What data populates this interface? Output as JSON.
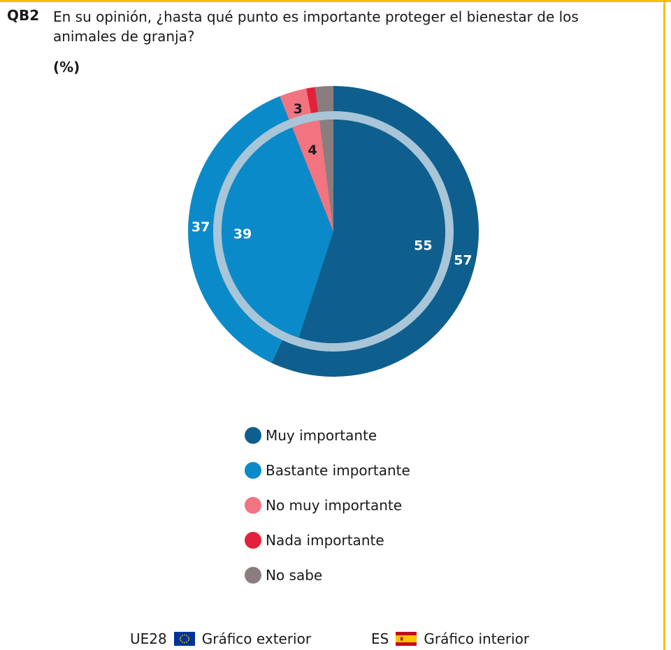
{
  "header": {
    "qid": "QB2",
    "question": "En su opinión, ¿hasta qué punto es importante proteger el bienestar de los animales de granja?",
    "unit": "(%)"
  },
  "chart_data": {
    "type": "pie",
    "categories": [
      "Muy importante",
      "Bastante importante",
      "No muy importante",
      "Nada importante",
      "No sabe"
    ],
    "colors": [
      "#0e5f8e",
      "#0b8ac9",
      "#f27480",
      "#e3213b",
      "#8a7d7f"
    ],
    "series": [
      {
        "name": "UE28",
        "ring": "exterior",
        "values": [
          57,
          37,
          3,
          1,
          2
        ],
        "labels": [
          "57",
          "37",
          "3",
          "",
          ""
        ]
      },
      {
        "name": "ES",
        "ring": "interior",
        "values": [
          55,
          39,
          4,
          0,
          2
        ],
        "labels": [
          "55",
          "39",
          "4",
          "",
          ""
        ]
      }
    ]
  },
  "legend": [
    {
      "label": "Muy importante",
      "color": "#0e5f8e"
    },
    {
      "label": "Bastante importante",
      "color": "#0b8ac9"
    },
    {
      "label": "No muy importante",
      "color": "#f27480"
    },
    {
      "label": "Nada importante",
      "color": "#e3213b"
    },
    {
      "label": "No sabe",
      "color": "#8a7d7f"
    }
  ],
  "footer": {
    "outer_code": "UE28",
    "outer_label": "Gráfico exterior",
    "inner_code": "ES",
    "inner_label": "Gráfico interior"
  }
}
